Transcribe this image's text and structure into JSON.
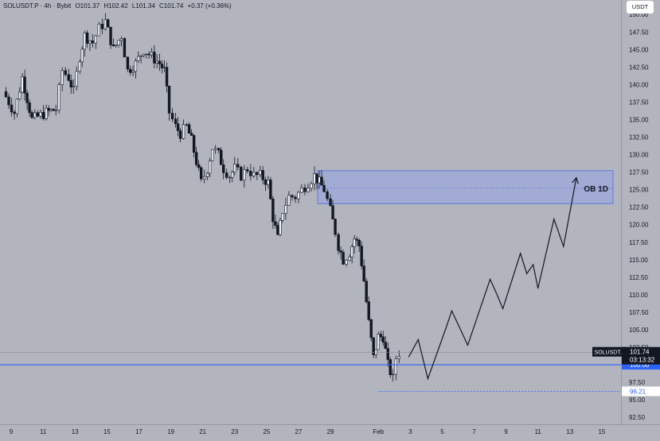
{
  "header": {
    "symbol": "SOLUSDT.P · 4h · Bybit",
    "open": "O101.37",
    "high": "H102.42",
    "low": "L101.34",
    "close": "C101.74",
    "change": "+0.37 (+0.36%)"
  },
  "currency_label": "USDT",
  "chart_data": {
    "type": "candlestick",
    "title": "",
    "ylim": [
      91.5,
      151.5
    ],
    "y_ticks": [
      92.5,
      95.0,
      97.5,
      100.0,
      102.5,
      105.0,
      107.5,
      110.0,
      112.5,
      115.0,
      117.5,
      120.0,
      122.5,
      125.0,
      127.5,
      130.0,
      132.5,
      135.0,
      137.5,
      140.0,
      142.5,
      145.0,
      147.5,
      150.0
    ],
    "x_ticks": [
      {
        "label": "9",
        "day": 9
      },
      {
        "label": "11",
        "day": 11
      },
      {
        "label": "13",
        "day": 13
      },
      {
        "label": "15",
        "day": 15
      },
      {
        "label": "17",
        "day": 17
      },
      {
        "label": "19",
        "day": 19
      },
      {
        "label": "21",
        "day": 21
      },
      {
        "label": "23",
        "day": 23
      },
      {
        "label": "25",
        "day": 25
      },
      {
        "label": "27",
        "day": 27
      },
      {
        "label": "29",
        "day": 29
      },
      {
        "label": "Feb",
        "day": 32
      },
      {
        "label": "3",
        "day": 34
      },
      {
        "label": "5",
        "day": 36
      },
      {
        "label": "7",
        "day": 38
      },
      {
        "label": "9",
        "day": 40
      },
      {
        "label": "11",
        "day": 42
      },
      {
        "label": "13",
        "day": 44
      },
      {
        "label": "15",
        "day": 46
      }
    ],
    "x_range": [
      8.3,
      47.2
    ],
    "price_path": [
      [
        8.5,
        139
      ],
      [
        9.2,
        136
      ],
      [
        9.7,
        141
      ],
      [
        10.3,
        135
      ],
      [
        11.2,
        136
      ],
      [
        11.8,
        136.5
      ],
      [
        12.2,
        142
      ],
      [
        12.6,
        141
      ],
      [
        12.9,
        139
      ],
      [
        13.3,
        144
      ],
      [
        13.6,
        147
      ],
      [
        14.1,
        146
      ],
      [
        14.5,
        148
      ],
      [
        14.9,
        149
      ],
      [
        15.4,
        145
      ],
      [
        15.9,
        147
      ],
      [
        16.3,
        142
      ],
      [
        16.8,
        143
      ],
      [
        17.3,
        145
      ],
      [
        17.8,
        144
      ],
      [
        18.3,
        143
      ],
      [
        18.6,
        142
      ],
      [
        18.9,
        136
      ],
      [
        19.3,
        134
      ],
      [
        19.6,
        133
      ],
      [
        20.0,
        134
      ],
      [
        20.3,
        132
      ],
      [
        20.6,
        129
      ],
      [
        20.9,
        126
      ],
      [
        21.3,
        128
      ],
      [
        21.6,
        131
      ],
      [
        22.0,
        130
      ],
      [
        22.3,
        128
      ],
      [
        22.7,
        127
      ],
      [
        23.0,
        128
      ],
      [
        23.4,
        127
      ],
      [
        23.8,
        128
      ],
      [
        24.2,
        127
      ],
      [
        24.6,
        127
      ],
      [
        25.1,
        126
      ],
      [
        25.4,
        121
      ],
      [
        25.7,
        118
      ],
      [
        26.0,
        122
      ],
      [
        26.4,
        124
      ],
      [
        26.8,
        124
      ],
      [
        27.2,
        125
      ],
      [
        27.6,
        126
      ],
      [
        28.0,
        127
      ],
      [
        28.3,
        126
      ],
      [
        28.6,
        125
      ],
      [
        29.0,
        122
      ],
      [
        29.3,
        119
      ],
      [
        29.5,
        117
      ],
      [
        29.8,
        115
      ],
      [
        30.2,
        116
      ],
      [
        30.5,
        118
      ],
      [
        30.8,
        117
      ],
      [
        31.1,
        112
      ],
      [
        31.4,
        106
      ],
      [
        31.7,
        101
      ],
      [
        32.0,
        104
      ],
      [
        32.3,
        104
      ],
      [
        32.6,
        100
      ],
      [
        32.9,
        98
      ],
      [
        33.1,
        101
      ],
      [
        33.3,
        101.7
      ]
    ],
    "current_price": 101.74,
    "order_block": {
      "label": "OB 1D",
      "x_start": 28.2,
      "x_end": 46.7,
      "high": 127.7,
      "low": 123.0,
      "mid": 125.2
    },
    "level_line": {
      "price": 100.0,
      "label": "100.00"
    },
    "low_line": {
      "price": 96.21,
      "label": "96.21",
      "x_start": 32.0
    },
    "current_line": {
      "price": 101.74,
      "label": "101.74",
      "symbol": "SOLUSDT.P",
      "countdown": "03:13:32"
    },
    "projection": [
      [
        33.9,
        101.1
      ],
      [
        34.5,
        103.6
      ],
      [
        35.1,
        98.0
      ],
      [
        36.2,
        105.0
      ],
      [
        36.6,
        107.7
      ],
      [
        37.6,
        102.8
      ],
      [
        39.0,
        112.2
      ],
      [
        39.4,
        110.2
      ],
      [
        39.8,
        108.0
      ],
      [
        40.9,
        115.9
      ],
      [
        41.3,
        113.0
      ],
      [
        41.7,
        114.3
      ],
      [
        42.0,
        110.9
      ],
      [
        43.0,
        120.8
      ],
      [
        43.6,
        116.9
      ],
      [
        44.4,
        126.7
      ]
    ]
  }
}
